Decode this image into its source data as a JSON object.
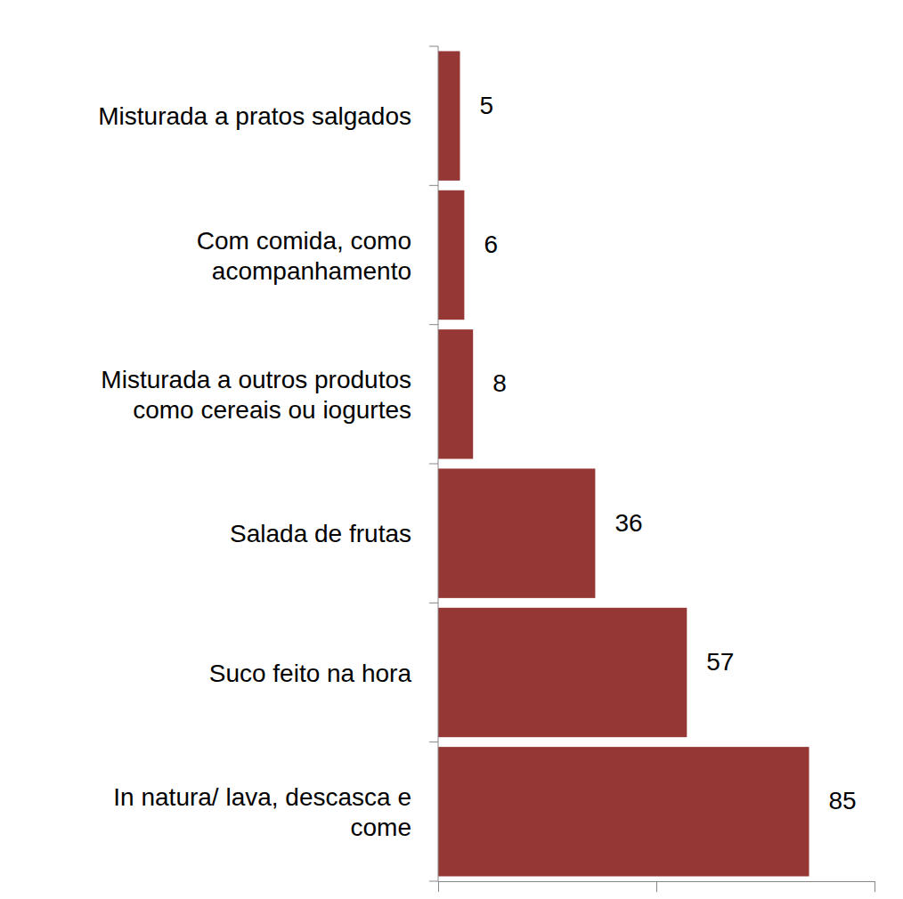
{
  "chart_data": {
    "type": "bar",
    "orientation": "horizontal",
    "categories": [
      "Misturada a pratos salgados",
      "Com comida, como\nacompanhamento",
      "Misturada a outros produtos\ncomo cereais ou iogurtes",
      "Salada de frutas",
      "Suco feito na hora",
      "In natura/ lava, descasca e\ncome"
    ],
    "values": [
      5,
      6,
      8,
      36,
      57,
      85
    ],
    "color": "#953735",
    "xlim": [
      0,
      100
    ],
    "xticks": [
      0,
      50,
      100
    ],
    "tick_labels": "y",
    "data_labels": true,
    "grid": false
  }
}
